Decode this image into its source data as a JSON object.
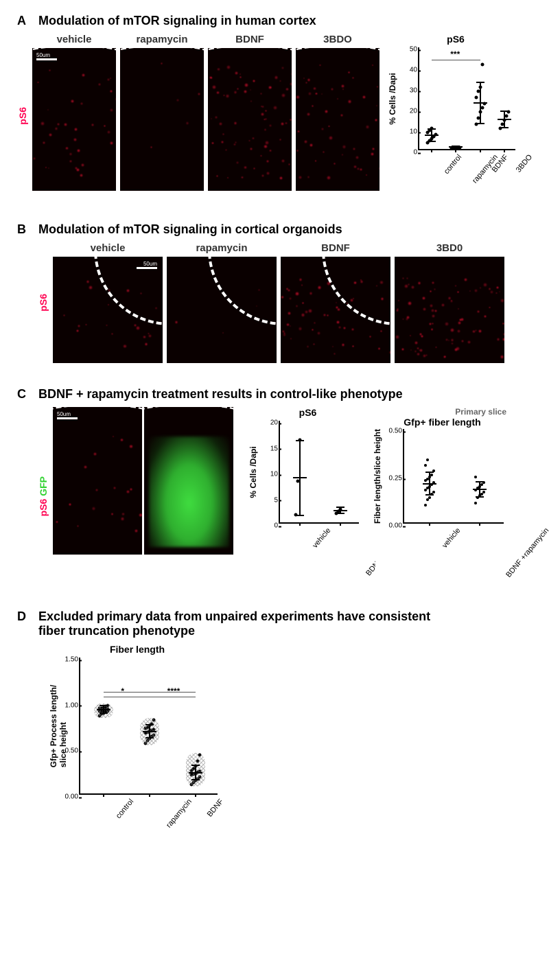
{
  "panelA": {
    "letter": "A",
    "title": "Modulation of mTOR signaling in human cortex",
    "ylabel": "pS6",
    "ylabel_color": "#ff0050",
    "conditions": [
      "vehicle",
      "rapamycin",
      "BDNF",
      "3BDO"
    ],
    "scale_text": "50um",
    "speckle_density": [
      35,
      5,
      70,
      50
    ],
    "chart": {
      "title": "pS6",
      "ylabel": "% Cells /Dapi",
      "ylim": [
        0,
        50
      ],
      "yticks": [
        0,
        10,
        20,
        30,
        40,
        50
      ],
      "categories": [
        "control",
        "rapamycin",
        "BDNF",
        "3BDO"
      ],
      "points": {
        "control": [
          3,
          4,
          5,
          6,
          7,
          8,
          9,
          10
        ],
        "rapamycin": [
          0.5,
          0.6,
          0.7,
          0.8,
          0.7
        ],
        "BDNF": [
          12,
          15,
          18,
          20,
          22,
          25,
          28,
          30,
          41
        ],
        "3BDO": [
          10,
          12,
          14,
          16,
          18
        ]
      },
      "means": {
        "control": 6.5,
        "rapamycin": 0.7,
        "BDNF": 22,
        "3BDO": 14
      },
      "sd": {
        "control": 3,
        "rapamycin": 0.3,
        "BDNF": 10,
        "3BDO": 4
      },
      "dot_size": 5,
      "sig": {
        "from": "control",
        "to": "BDNF",
        "label": "***",
        "y": 43
      }
    }
  },
  "panelB": {
    "letter": "B",
    "title": "Modulation of mTOR signaling in cortical organoids",
    "ylabel": "pS6",
    "ylabel_color": "#ff0050",
    "conditions": [
      "vehicle",
      "rapamycin",
      "BDNF",
      "3BD0"
    ],
    "scale_text": "50um",
    "speckle_density": [
      20,
      4,
      55,
      85
    ]
  },
  "panelC": {
    "letter": "C",
    "title": "BDNF + rapamycin treatment results in control-like phenotype",
    "ylabels": [
      {
        "text": "pS6",
        "color": "#ff0050"
      },
      {
        "text": "GFP",
        "color": "#32d232"
      }
    ],
    "scale_text": "50um",
    "chart1": {
      "title": "pS6",
      "ylabel": "% Cells /Dapi",
      "ylim": [
        0,
        20
      ],
      "yticks": [
        0,
        5,
        10,
        15,
        20
      ],
      "categories": [
        "vehicle",
        "BDNF+rapamycin"
      ],
      "points": {
        "vehicle": [
          1.5,
          8,
          16
        ],
        "BDNF+rapamycin": [
          1.8,
          2.2,
          2.6
        ]
      },
      "means": {
        "vehicle": 8.5,
        "BDNF+rapamycin": 2.2
      },
      "sd": {
        "vehicle": 7.3,
        "BDNF+rapamycin": 0.6
      },
      "dot_size": 5
    },
    "chart2": {
      "supertitle": "Primary slice",
      "title": "Gfp+ fiber length",
      "ylabel": "Fiber length/slice height",
      "ylim": [
        0,
        0.5
      ],
      "yticks": [
        0.0,
        0.25,
        0.5
      ],
      "categories": [
        "vehicle",
        "BDNF +rapamycin"
      ],
      "points": {
        "vehicle": [
          0.09,
          0.12,
          0.13,
          0.15,
          0.16,
          0.17,
          0.18,
          0.19,
          0.2,
          0.21,
          0.22,
          0.23,
          0.24,
          0.25,
          0.27,
          0.3,
          0.33
        ],
        "BDNF +rapamycin": [
          0.1,
          0.13,
          0.14,
          0.15,
          0.16,
          0.17,
          0.18,
          0.19,
          0.2,
          0.21,
          0.24
        ]
      },
      "means": {
        "vehicle": 0.2,
        "BDNF +rapamycin": 0.17
      },
      "sd": {
        "vehicle": 0.06,
        "BDNF +rapamycin": 0.04
      },
      "dot_size": 4
    }
  },
  "panelD": {
    "letter": "D",
    "title": "Excluded primary data from unpaired experiments have consistent fiber truncation phenotype",
    "chart": {
      "title": "Fiber length",
      "ylabel": "Gfp+ Process length/\nslice height",
      "ylim": [
        0,
        1.5
      ],
      "yticks": [
        0.0,
        0.5,
        1.0,
        1.5
      ],
      "categories": [
        "control",
        "rapamycin",
        "BDNF"
      ],
      "points": {
        "control": [
          0.85,
          0.87,
          0.88,
          0.89,
          0.9,
          0.9,
          0.91,
          0.91,
          0.92,
          0.92,
          0.93,
          0.93,
          0.94,
          0.95,
          0.96
        ],
        "rapamycin": [
          0.55,
          0.58,
          0.6,
          0.62,
          0.64,
          0.66,
          0.67,
          0.68,
          0.69,
          0.7,
          0.71,
          0.72,
          0.74,
          0.76,
          0.8
        ],
        "BDNF": [
          0.1,
          0.12,
          0.14,
          0.16,
          0.18,
          0.2,
          0.21,
          0.22,
          0.23,
          0.24,
          0.25,
          0.27,
          0.3,
          0.35,
          0.42
        ]
      },
      "means": {
        "control": 0.91,
        "rapamycin": 0.67,
        "BDNF": 0.22
      },
      "sd": {
        "control": 0.04,
        "rapamycin": 0.07,
        "BDNF": 0.08
      },
      "dot_size": 5,
      "hatched": true,
      "sig": [
        {
          "from": "control",
          "to": "rapamycin",
          "label": "*",
          "y": 1.05
        },
        {
          "from": "rapamycin",
          "to": "BDNF",
          "label": "****",
          "y": 1.05
        }
      ],
      "sig_line_full": {
        "from": "control",
        "to": "BDNF",
        "y": 1.1
      }
    }
  },
  "colors": {
    "red_stain": "#e01040",
    "green_stain": "#3fdc3f",
    "black": "#000000",
    "grey": "#707070"
  }
}
